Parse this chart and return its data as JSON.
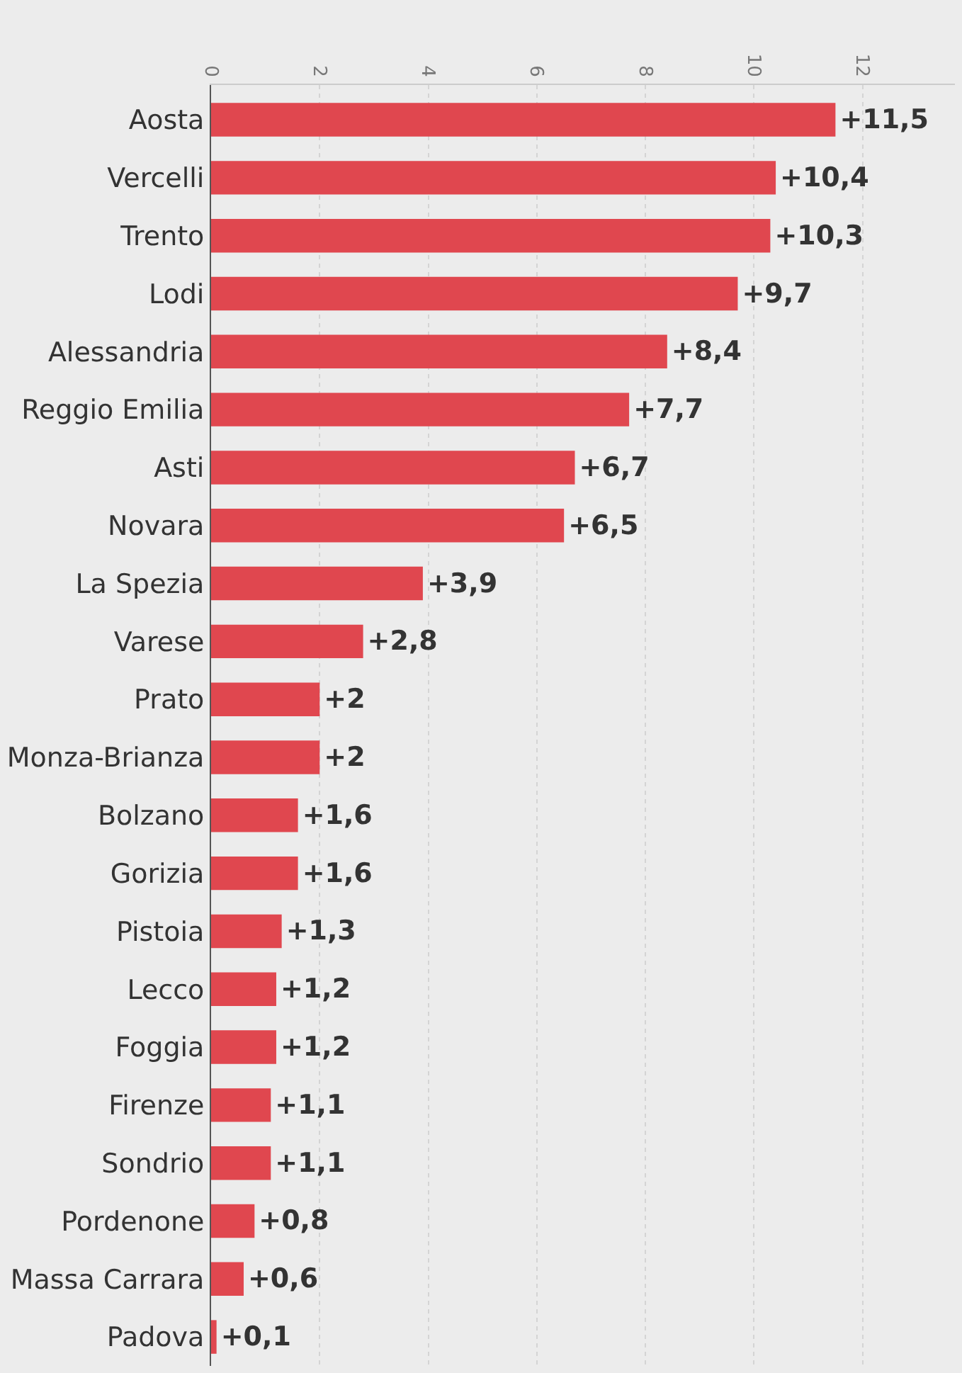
{
  "chart_data": {
    "type": "bar",
    "orientation": "horizontal",
    "categories": [
      "Aosta",
      "Vercelli",
      "Trento",
      "Lodi",
      "Alessandria",
      "Reggio Emilia",
      "Asti",
      "Novara",
      "La Spezia",
      "Varese",
      "Prato",
      "Monza-Brianza",
      "Bolzano",
      "Gorizia",
      "Pistoia",
      "Lecco",
      "Foggia",
      "Firenze",
      "Sondrio",
      "Pordenone",
      "Massa Carrara",
      "Padova"
    ],
    "values": [
      11.5,
      10.4,
      10.3,
      9.7,
      8.4,
      7.7,
      6.7,
      6.5,
      3.9,
      2.8,
      2,
      2,
      1.6,
      1.6,
      1.3,
      1.2,
      1.2,
      1.1,
      1.1,
      0.8,
      0.6,
      0.1
    ],
    "value_labels": [
      "+11,5",
      "+10,4",
      "+10,3",
      "+9,7",
      "+8,4",
      "+7,7",
      "+6,7",
      "+6,5",
      "+3,9",
      "+2,8",
      "+2",
      "+2",
      "+1,6",
      "+1,6",
      "+1,3",
      "+1,2",
      "+1,2",
      "+1,1",
      "+1,1",
      "+0,8",
      "+0,6",
      "+0,1"
    ],
    "color": "#e0474f",
    "xlim": [
      0,
      13.7
    ],
    "xticks": [
      0,
      2,
      4,
      6,
      8,
      10,
      12
    ],
    "grid": "x",
    "legend": false
  }
}
